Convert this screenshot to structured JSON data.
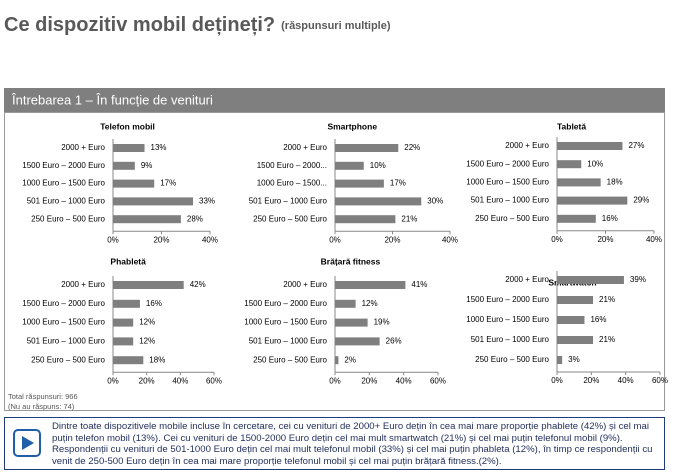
{
  "header": {
    "title": "Ce dispozitiv mobil dețineți?",
    "subtitle": "(răspunsuri multiple)",
    "section": "Întrebarea 1 – În funcție de venituri"
  },
  "note": {
    "total": "Total răspunsuri: 966",
    "missing": "(Nu au răspuns: 74)"
  },
  "footer": {
    "text": "Dintre toate dispozitivele mobile incluse în cercetare, cei cu venituri de 2000+ Euro dețin în cea mai mare proporție phablete (42%) și cel mai puțin telefon mobil (13%). Cei cu venituri de 1500-2000 Euro dețin cel mai mult smartwatch (21%) și cel mai puțin telefonul mobil (9%). Respondenții cu venituri de 501-1000 Euro dețin cel mai mult telefonul mobil (33%) și cel mai puțin phableta (12%), în timp ce respondenții cu venit de 250-500 Euro dețin în cea mai mare proporție telefonul mobil și cel mai puțin brățară fitness.(2%)."
  },
  "chart_data": [
    {
      "type": "hbar",
      "title": "Telefon mobil",
      "color": "#7f7f7f",
      "categories": [
        "2000 + Euro",
        "1500 Euro – 2000 Euro",
        "1000 Euro – 1500 Euro",
        "501 Euro – 1000 Euro",
        "250 Euro – 500 Euro"
      ],
      "values": [
        13,
        9,
        17,
        33,
        28
      ],
      "value_labels": [
        "13%",
        "9%",
        "17%",
        "33%",
        "28%"
      ],
      "xlim": [
        0,
        40
      ],
      "xticks": [
        {
          "value": 0,
          "label": "0%"
        },
        {
          "value": 20,
          "label": "20%"
        },
        {
          "value": 40,
          "label": "40%"
        }
      ]
    },
    {
      "type": "hbar",
      "title": "Smartphone",
      "color": "#7f7f7f",
      "categories": [
        "2000 + Euro",
        "1500 Euro – 2000...",
        "1000 Euro – 1500...",
        "501 Euro – 1000 Euro",
        "250 Euro – 500 Euro"
      ],
      "values": [
        22,
        10,
        17,
        30,
        21
      ],
      "value_labels": [
        "22%",
        "10%",
        "17%",
        "30%",
        "21%"
      ],
      "xlim": [
        0,
        40
      ],
      "xticks": [
        {
          "value": 0,
          "label": "0%"
        },
        {
          "value": 20,
          "label": "20%"
        },
        {
          "value": 40,
          "label": "40%"
        }
      ]
    },
    {
      "type": "hbar",
      "title": "Tabletă",
      "color": "#7f7f7f",
      "categories": [
        "2000 + Euro",
        "1500 Euro – 2000 Euro",
        "1000 Euro – 1500 Euro",
        "501 Euro – 1000 Euro",
        "250 Euro – 500 Euro"
      ],
      "values": [
        27,
        10,
        18,
        29,
        16
      ],
      "value_labels": [
        "27%",
        "10%",
        "18%",
        "29%",
        "16%"
      ],
      "xlim": [
        0,
        40
      ],
      "xticks": [
        {
          "value": 0,
          "label": "0%"
        },
        {
          "value": 20,
          "label": "20%"
        },
        {
          "value": 40,
          "label": "40%"
        }
      ]
    },
    {
      "type": "hbar",
      "title": "Phabletă",
      "color": "#7f7f7f",
      "categories": [
        "2000 + Euro",
        "1500 Euro – 2000 Euro",
        "1000 Euro – 1500 Euro",
        "501 Euro – 1000 Euro",
        "250 Euro – 500 Euro"
      ],
      "values": [
        42,
        16,
        12,
        12,
        18
      ],
      "value_labels": [
        "42%",
        "16%",
        "12%",
        "12%",
        "18%"
      ],
      "xlim": [
        0,
        60
      ],
      "xticks": [
        {
          "value": 0,
          "label": "0%"
        },
        {
          "value": 20,
          "label": "20%"
        },
        {
          "value": 40,
          "label": "40%"
        },
        {
          "value": 60,
          "label": "60%"
        }
      ]
    },
    {
      "type": "hbar",
      "title": "Brățară fitness",
      "color": "#7f7f7f",
      "categories": [
        "2000 + Euro",
        "1500 Euro – 2000 Euro",
        "1000 Euro – 1500 Euro",
        "501 Euro – 1000 Euro",
        "250 Euro – 500 Euro"
      ],
      "values": [
        41,
        12,
        19,
        26,
        2
      ],
      "value_labels": [
        "41%",
        "12%",
        "19%",
        "26%",
        "2%"
      ],
      "xlim": [
        0,
        60
      ],
      "xticks": [
        {
          "value": 0,
          "label": "0%"
        },
        {
          "value": 20,
          "label": "20%"
        },
        {
          "value": 40,
          "label": "40%"
        },
        {
          "value": 60,
          "label": "60%"
        }
      ]
    },
    {
      "type": "hbar",
      "title": "Smartwatch",
      "color": "#7f7f7f",
      "categories": [
        "2000 + Euro",
        "1500 Euro – 2000 Euro",
        "1000 Euro – 1500 Euro",
        "501 Euro – 1000 Euro",
        "250 Euro – 500 Euro"
      ],
      "values": [
        39,
        21,
        16,
        21,
        3
      ],
      "value_labels": [
        "39%",
        "21%",
        "16%",
        "21%",
        "3%"
      ],
      "xlim": [
        0,
        60
      ],
      "xticks": [
        {
          "value": 0,
          "label": "0%"
        },
        {
          "value": 20,
          "label": "20%"
        },
        {
          "value": 40,
          "label": "40%"
        },
        {
          "value": 60,
          "label": "60%"
        }
      ]
    }
  ]
}
